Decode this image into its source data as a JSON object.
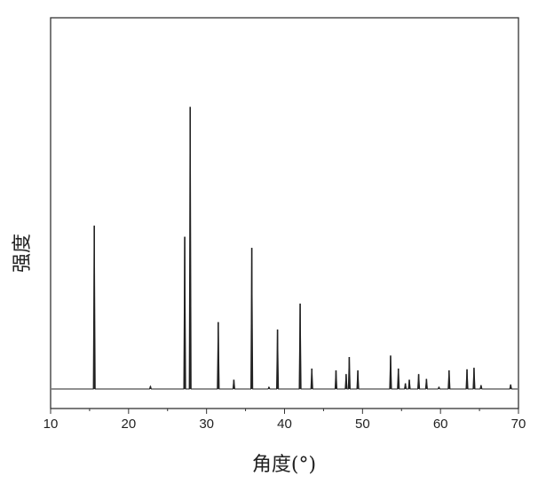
{
  "chart_data": {
    "type": "line",
    "title": "",
    "xlabel": "角度(°)",
    "ylabel": "强度",
    "xlim": [
      10,
      70
    ],
    "ylim": [
      0,
      100
    ],
    "xticks": [
      "10",
      "20",
      "30",
      "40",
      "50",
      "60",
      "70"
    ],
    "yticks": [],
    "grid": false,
    "line_color": "#222222",
    "peaks": [
      {
        "x": 15.6,
        "y": 44
      },
      {
        "x": 22.8,
        "y": 0.7
      },
      {
        "x": 27.2,
        "y": 41
      },
      {
        "x": 27.9,
        "y": 76
      },
      {
        "x": 31.5,
        "y": 18
      },
      {
        "x": 33.5,
        "y": 2.5
      },
      {
        "x": 35.8,
        "y": 38
      },
      {
        "x": 38.0,
        "y": 0.5
      },
      {
        "x": 39.1,
        "y": 16
      },
      {
        "x": 42.0,
        "y": 23
      },
      {
        "x": 43.5,
        "y": 5.5
      },
      {
        "x": 46.6,
        "y": 5
      },
      {
        "x": 47.9,
        "y": 4
      },
      {
        "x": 48.3,
        "y": 8.6
      },
      {
        "x": 49.4,
        "y": 5
      },
      {
        "x": 53.6,
        "y": 9
      },
      {
        "x": 54.6,
        "y": 5.5
      },
      {
        "x": 55.5,
        "y": 1.5
      },
      {
        "x": 56.0,
        "y": 2.5
      },
      {
        "x": 57.2,
        "y": 4
      },
      {
        "x": 58.2,
        "y": 2.7
      },
      {
        "x": 59.8,
        "y": 0.5
      },
      {
        "x": 61.1,
        "y": 5
      },
      {
        "x": 63.4,
        "y": 5.3
      },
      {
        "x": 64.3,
        "y": 5.7
      },
      {
        "x": 65.2,
        "y": 1
      },
      {
        "x": 69.0,
        "y": 1.2
      }
    ]
  }
}
